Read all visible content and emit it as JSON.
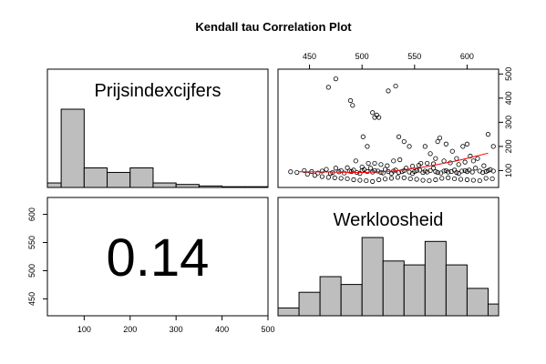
{
  "chart_data": {
    "type": "scatter-matrix",
    "title": "Kendall tau Correlation Plot",
    "variables": [
      "Prijsindexcijfers",
      "Werkloosheid"
    ],
    "correlation_label": "0.14",
    "prijs_axis": {
      "range": [
        20,
        500
      ],
      "ticks": [
        100,
        200,
        300,
        400,
        500
      ]
    },
    "werk_axis": {
      "range": [
        420,
        630
      ],
      "ticks": [
        450,
        500,
        550,
        600
      ]
    },
    "prijs_histogram": {
      "edges": [
        0,
        50,
        100,
        150,
        200,
        250,
        300,
        350,
        400,
        450,
        500
      ],
      "counts": [
        3,
        52,
        13,
        10,
        13,
        3,
        2,
        1,
        0.5,
        0.5
      ]
    },
    "werk_histogram": {
      "edges": [
        420,
        440,
        460,
        480,
        500,
        520,
        540,
        560,
        580,
        600,
        620,
        640
      ],
      "counts": [
        2,
        6,
        10,
        8,
        20,
        14,
        13,
        19,
        13,
        7,
        3
      ]
    },
    "scatter": {
      "x": [
        432,
        438,
        445,
        452,
        458,
        462,
        466,
        470,
        472,
        475,
        478,
        480,
        483,
        486,
        488,
        490,
        492,
        495,
        498,
        500,
        502,
        505,
        508,
        510,
        512,
        515,
        518,
        520,
        522,
        525,
        528,
        530,
        532,
        535,
        538,
        540,
        542,
        545,
        548,
        550,
        552,
        555,
        558,
        560,
        562,
        565,
        568,
        570,
        572,
        575,
        578,
        580,
        582,
        585,
        588,
        590,
        592,
        595,
        598,
        600,
        602,
        605,
        608,
        612,
        615,
        618,
        620,
        622,
        625,
        448,
        455,
        462,
        468,
        474,
        480,
        486,
        492,
        498,
        504,
        510,
        516,
        522,
        528,
        534,
        540,
        546,
        552,
        558,
        564,
        570,
        576,
        582,
        588,
        594,
        600,
        606,
        612,
        618,
        624,
        468,
        475,
        489,
        491,
        501,
        505,
        510,
        512,
        514,
        516,
        525,
        532,
        535,
        540,
        545,
        556,
        560,
        565,
        570,
        572,
        574,
        580,
        586,
        590,
        596,
        600,
        603,
        610,
        620,
        625,
        494,
        500,
        506,
        512,
        518,
        524,
        530,
        536,
        548,
        554,
        562,
        568,
        578,
        584,
        592,
        598,
        606,
        616
      ],
      "y": [
        95,
        92,
        100,
        96,
        90,
        98,
        105,
        88,
        92,
        110,
        95,
        100,
        90,
        112,
        98,
        96,
        102,
        92,
        88,
        100,
        104,
        96,
        110,
        94,
        100,
        98,
        92,
        90,
        105,
        96,
        88,
        98,
        102,
        92,
        96,
        100,
        110,
        94,
        88,
        96,
        100,
        102,
        92,
        98,
        94,
        100,
        110,
        96,
        92,
        90,
        98,
        100,
        94,
        96,
        102,
        92,
        88,
        98,
        100,
        96,
        102,
        94,
        110,
        98,
        92,
        96,
        100,
        104,
        98,
        85,
        80,
        75,
        72,
        70,
        68,
        66,
        62,
        60,
        58,
        55,
        62,
        65,
        68,
        72,
        70,
        66,
        64,
        60,
        58,
        62,
        68,
        70,
        66,
        64,
        62,
        60,
        58,
        68,
        66,
        445,
        480,
        390,
        370,
        240,
        200,
        340,
        320,
        330,
        320,
        430,
        450,
        240,
        220,
        200,
        130,
        200,
        170,
        150,
        220,
        235,
        210,
        180,
        150,
        200,
        210,
        160,
        150,
        250,
        200,
        140,
        115,
        130,
        130,
        125,
        120,
        140,
        145,
        118,
        122,
        130,
        128,
        140,
        132,
        125,
        135,
        140,
        120
      ],
      "smooth_x": [
        440,
        470,
        500,
        530,
        560,
        590,
        620
      ],
      "smooth_y": [
        95,
        94,
        92,
        98,
        115,
        140,
        172
      ]
    },
    "scatter_y_axis": {
      "range": [
        30,
        520
      ],
      "ticks": [
        100,
        200,
        300,
        400,
        500
      ]
    },
    "colors": {
      "bar": "#bebebe",
      "smooth": "#ff0000"
    }
  }
}
